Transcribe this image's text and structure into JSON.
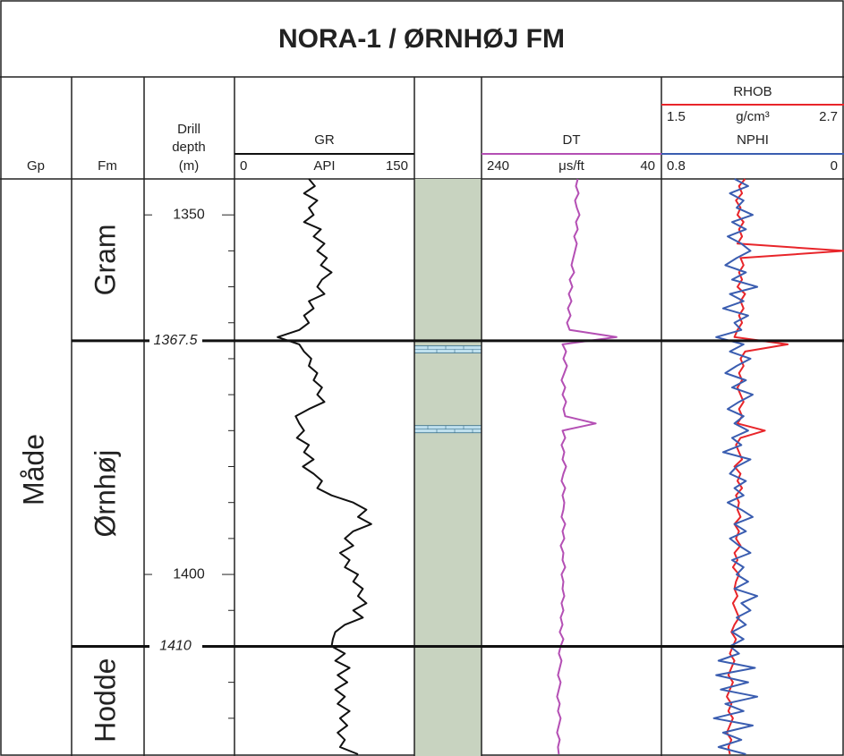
{
  "chart_data": {
    "type": "well_log",
    "title": "NORA-1 / ØRNHØJ FM",
    "group_header": "Gp",
    "formation_header": "Fm",
    "depth_label": [
      "Drill",
      "depth",
      "(m)"
    ],
    "group": "Måde",
    "formations": [
      {
        "name": "Gram"
      },
      {
        "name": "Ørnhøj",
        "top": 1367.5
      },
      {
        "name": "Hodde",
        "top": 1410
      }
    ],
    "ylim": [
      1345,
      1425
    ],
    "yticks": [
      1350,
      1400
    ],
    "minor_yticks": [
      1355,
      1360,
      1365,
      1370,
      1375,
      1380,
      1385,
      1390,
      1395,
      1405,
      1415,
      1420
    ],
    "lithology": {
      "color": "#c8d3c0",
      "stringer_color": "#bfe0ee",
      "stringers": [
        [
          1368.2,
          1369.2
        ],
        [
          1379.3,
          1380.3
        ]
      ]
    },
    "depth": [
      1345,
      1346,
      1347,
      1348,
      1349,
      1350,
      1351,
      1352,
      1353,
      1354,
      1355,
      1356,
      1357,
      1358,
      1359,
      1360,
      1361,
      1362,
      1363,
      1364,
      1365,
      1366,
      1367,
      1368,
      1369,
      1370,
      1371,
      1372,
      1373,
      1374,
      1375,
      1376,
      1377,
      1378,
      1379,
      1380,
      1381,
      1382,
      1383,
      1384,
      1385,
      1386,
      1387,
      1388,
      1389,
      1390,
      1391,
      1392,
      1393,
      1394,
      1395,
      1396,
      1397,
      1398,
      1399,
      1400,
      1401,
      1402,
      1403,
      1404,
      1405,
      1406,
      1407,
      1408,
      1409,
      1410,
      1411,
      1412,
      1413,
      1414,
      1415,
      1416,
      1417,
      1418,
      1419,
      1420,
      1421,
      1422,
      1423,
      1424,
      1425
    ],
    "series": [
      {
        "name": "GR",
        "unit": "API",
        "xlim": [
          0,
          150
        ],
        "color": "#111111",
        "values": [
          62,
          67,
          58,
          69,
          62,
          66,
          58,
          72,
          66,
          75,
          69,
          77,
          72,
          81,
          73,
          69,
          75,
          62,
          66,
          58,
          62,
          54,
          36,
          54,
          58,
          64,
          62,
          69,
          66,
          73,
          69,
          75,
          62,
          51,
          54,
          58,
          52,
          62,
          58,
          66,
          57,
          66,
          73,
          69,
          81,
          99,
          110,
          103,
          114,
          99,
          92,
          99,
          88,
          96,
          92,
          103,
          99,
          107,
          103,
          110,
          99,
          107,
          92,
          84,
          82,
          81,
          92,
          84,
          96,
          86,
          94,
          84,
          92,
          86,
          96,
          88,
          94,
          86,
          92,
          88,
          103
        ]
      },
      {
        "name": "DT",
        "unit": "μs/ft",
        "xlim": [
          240,
          40
        ],
        "color": "#b44fb4",
        "values": [
          133,
          135,
          132,
          136,
          134,
          131,
          135,
          133,
          137,
          134,
          136,
          138,
          140,
          137,
          142,
          139,
          143,
          140,
          144,
          141,
          145,
          142,
          90,
          150,
          146,
          149,
          145,
          148,
          151,
          147,
          150,
          146,
          149,
          147,
          113,
          150,
          147,
          151,
          148,
          150,
          146,
          149,
          151,
          147,
          150,
          148,
          149,
          151,
          147,
          150,
          148,
          152,
          149,
          150,
          147,
          151,
          149,
          150,
          148,
          151,
          149,
          152,
          150,
          153,
          149,
          152,
          154,
          151,
          153,
          155,
          152,
          154,
          156,
          153,
          155,
          152,
          154,
          156,
          153,
          155,
          154
        ]
      },
      {
        "name": "RHOB",
        "unit": "g/cm³",
        "xlim": [
          1.5,
          2.7
        ],
        "color": "#e8252a",
        "values": [
          2.05,
          2.01,
          2.03,
          1.99,
          2.02,
          2.0,
          2.04,
          2.01,
          2.03,
          2.0,
          2.7,
          2.02,
          2.04,
          2.01,
          2.03,
          2.0,
          2.05,
          2.02,
          2.04,
          2.01,
          2.03,
          2.0,
          1.98,
          2.33,
          2.05,
          2.02,
          2.04,
          2.01,
          2.03,
          2.0,
          2.02,
          2.04,
          2.01,
          2.03,
          2.0,
          2.18,
          2.02,
          1.99,
          2.01,
          2.03,
          1.98,
          2.02,
          2.0,
          2.03,
          1.99,
          2.01,
          2.0,
          2.02,
          1.98,
          2.01,
          1.99,
          2.02,
          1.98,
          2.0,
          1.97,
          2.01,
          1.99,
          1.98,
          2.0,
          1.97,
          1.99,
          2.01,
          1.98,
          1.96,
          1.99,
          1.97,
          1.95,
          1.98,
          1.96,
          1.94,
          1.97,
          1.95,
          1.93,
          1.96,
          1.94,
          1.97,
          1.95,
          1.93,
          1.96,
          1.94,
          1.95
        ]
      },
      {
        "name": "NPHI",
        "xlim": [
          0.8,
          0
        ],
        "color": "#3a5db0",
        "values": [
          0.48,
          0.42,
          0.5,
          0.44,
          0.47,
          0.4,
          0.49,
          0.43,
          0.51,
          0.45,
          0.41,
          0.47,
          0.52,
          0.43,
          0.49,
          0.38,
          0.5,
          0.44,
          0.53,
          0.42,
          0.48,
          0.45,
          0.56,
          0.44,
          0.5,
          0.41,
          0.47,
          0.52,
          0.43,
          0.49,
          0.4,
          0.46,
          0.51,
          0.44,
          0.48,
          0.42,
          0.49,
          0.45,
          0.53,
          0.41,
          0.47,
          0.5,
          0.43,
          0.48,
          0.44,
          0.51,
          0.45,
          0.4,
          0.48,
          0.43,
          0.5,
          0.46,
          0.41,
          0.49,
          0.44,
          0.47,
          0.42,
          0.48,
          0.38,
          0.45,
          0.41,
          0.47,
          0.43,
          0.49,
          0.44,
          0.5,
          0.46,
          0.55,
          0.39,
          0.56,
          0.42,
          0.54,
          0.38,
          0.52,
          0.44,
          0.57,
          0.4,
          0.53,
          0.45,
          0.55,
          0.43
        ]
      }
    ]
  }
}
